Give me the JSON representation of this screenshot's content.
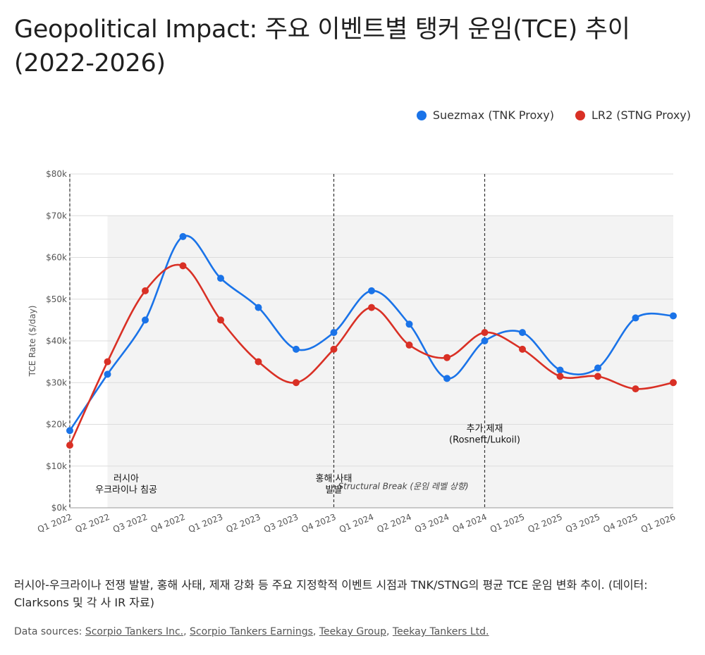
{
  "title": "Geopolitical Impact: 주요 이벤트별 탱커 운임(TCE) 추이 (2022-2026)",
  "legend": {
    "series1": "Suezmax (TNK Proxy)",
    "series2": "LR2 (STNG Proxy)"
  },
  "chart_data": {
    "type": "line",
    "ylabel": "TCE Rate ($/day)",
    "ylim": [
      0,
      80000
    ],
    "y_ticks": [
      "$0k",
      "$10k",
      "$20k",
      "$30k",
      "$40k",
      "$50k",
      "$60k",
      "$70k",
      "$80k"
    ],
    "categories": [
      "Q1 2022",
      "Q2 2022",
      "Q3 2022",
      "Q4 2022",
      "Q1 2023",
      "Q2 2023",
      "Q3 2023",
      "Q4 2023",
      "Q1 2024",
      "Q2 2024",
      "Q3 2024",
      "Q4 2024",
      "Q1 2025",
      "Q2 2025",
      "Q3 2025",
      "Q4 2025",
      "Q1 2026"
    ],
    "series": [
      {
        "name": "Suezmax (TNK Proxy)",
        "color": "#1a73e8",
        "values": [
          18500,
          32000,
          45000,
          65000,
          55000,
          48000,
          38000,
          42000,
          52000,
          44000,
          31000,
          40000,
          42000,
          33000,
          33500,
          45500,
          46000
        ]
      },
      {
        "name": "LR2 (STNG Proxy)",
        "color": "#d93025",
        "values": [
          15000,
          35000,
          52000,
          58000,
          45000,
          35000,
          30000,
          38000,
          48000,
          39000,
          36000,
          42000,
          38000,
          31500,
          31500,
          28500,
          30000
        ]
      }
    ],
    "grid": true,
    "legend_position": "top-right",
    "shaded_region": {
      "from": "Q2 2022",
      "to": "Q1 2026",
      "y_max": 70000
    },
    "event_lines": [
      {
        "at": "Q1 2022",
        "label_lines": [
          "러시아",
          "우크라이나 침공"
        ],
        "label_y": 5000
      },
      {
        "at": "Q4 2023",
        "label_lines": [
          "홍해 사태",
          "발발"
        ],
        "label_y": 5000
      },
      {
        "at": "Q4 2024",
        "label_lines": [
          "추가 제재",
          "(Rosneft/Lukoil)"
        ],
        "label_y": 17000
      }
    ],
    "annotations": [
      {
        "text": "Structural Break (운임 레벨 상향)",
        "x": "Q4 2023",
        "y": 5000
      }
    ]
  },
  "caption": "러시아-우크라이나 전쟁 발발, 홍해 사태, 제재 강화 등 주요 지정학적 이벤트 시점과 TNK/STNG의 평균 TCE 운임 변화 추이. (데이터: Clarksons 및 각 사 IR 자료)",
  "sources": {
    "label": "Data sources:",
    "links": [
      "Scorpio Tankers Inc.",
      "Scorpio Tankers Earnings",
      "Teekay Group",
      "Teekay Tankers Ltd."
    ]
  }
}
